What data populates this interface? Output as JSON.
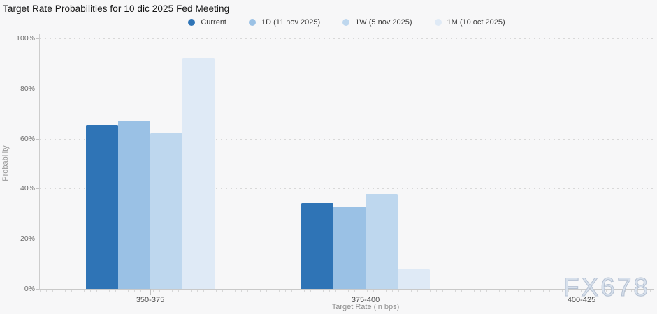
{
  "title": "Target Rate Probabilities for 10 dic 2025 Fed Meeting",
  "watermark": "FX678",
  "colors": {
    "background": "#f7f7f8",
    "grid": "#d8d8d8",
    "axis": "#c9c9c9",
    "series_current": "#2f74b6",
    "series_1d": "#9ac1e5",
    "series_1w": "#bed7ee",
    "series_1m": "#dfeaf6"
  },
  "chart_data": {
    "type": "bar",
    "title": "Target Rate Probabilities for 10 dic 2025 Fed Meeting",
    "xlabel": "Target Rate (in bps)",
    "ylabel": "Probability",
    "ylim": [
      0,
      100
    ],
    "y_tick_labels": [
      "0%",
      "20%",
      "40%",
      "60%",
      "80%",
      "100%"
    ],
    "grid": "dotted-horizontal",
    "legend_position": "top",
    "categories": [
      "350-375",
      "375-400",
      "400-425"
    ],
    "series": [
      {
        "name": "Current",
        "color": "#2f74b6",
        "values": [
          65.6,
          34.4,
          0
        ]
      },
      {
        "name": "1D (11 nov 2025)",
        "color": "#9ac1e5",
        "values": [
          67.1,
          32.9,
          0
        ]
      },
      {
        "name": "1W (5 nov 2025)",
        "color": "#bed7ee",
        "values": [
          62.0,
          38.0,
          0
        ]
      },
      {
        "name": "1M (10 oct 2025)",
        "color": "#dfeaf6",
        "values": [
          92.2,
          7.8,
          0
        ]
      }
    ]
  }
}
